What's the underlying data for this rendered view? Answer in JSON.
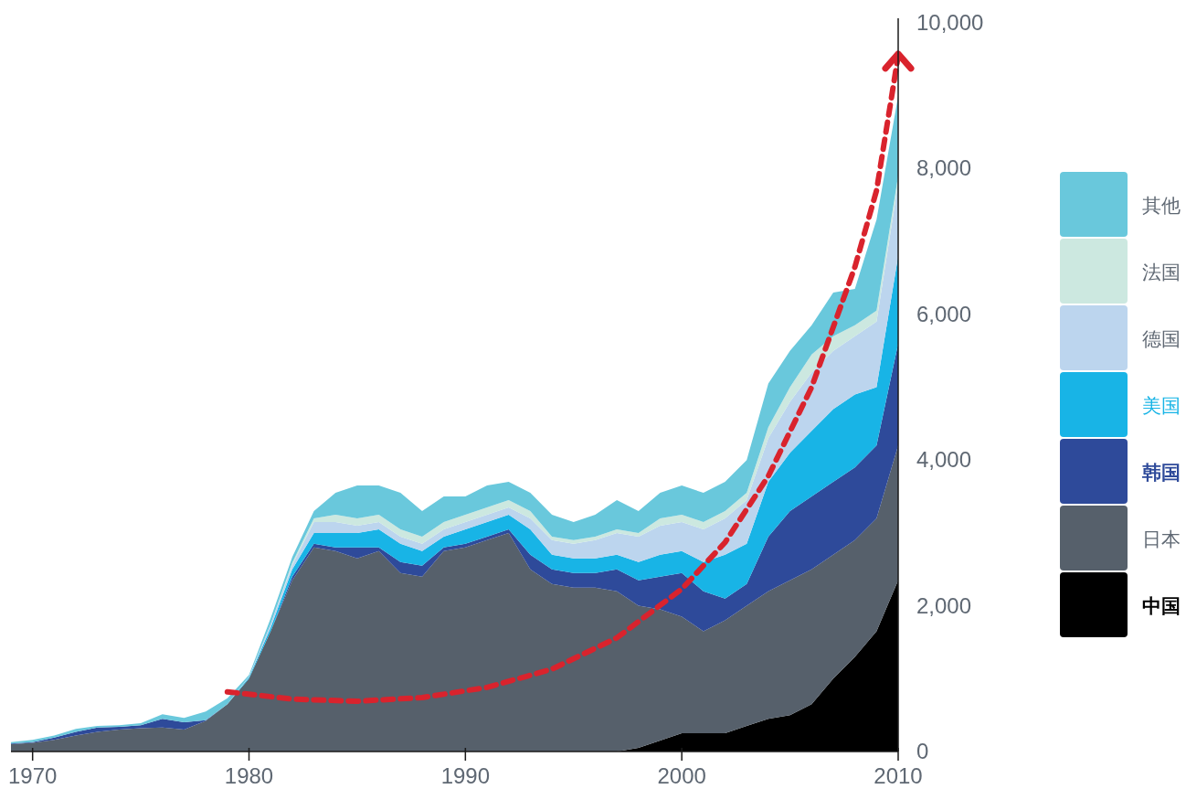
{
  "chart_data": {
    "type": "area",
    "stacked": true,
    "legend": "right",
    "grid": false,
    "x": [
      1969,
      1970,
      1971,
      1972,
      1973,
      1974,
      1975,
      1976,
      1977,
      1978,
      1979,
      1980,
      1981,
      1982,
      1983,
      1984,
      1985,
      1986,
      1987,
      1988,
      1989,
      1990,
      1991,
      1992,
      1993,
      1994,
      1995,
      1996,
      1997,
      1998,
      1999,
      2000,
      2001,
      2002,
      2003,
      2004,
      2005,
      2006,
      2007,
      2008,
      2009,
      2010
    ],
    "xlim": [
      1969,
      2010
    ],
    "xticks": [
      1970,
      1980,
      1990,
      2000,
      2010
    ],
    "ylim": [
      0,
      10000
    ],
    "yticks": [
      0,
      {
        "value": 2000,
        "label": "2,000"
      },
      {
        "value": 4000,
        "label": "4,000"
      },
      {
        "value": 6000,
        "label": "6,000"
      },
      {
        "value": 8000,
        "label": "8,000"
      },
      {
        "value": 10000,
        "label": "10,000"
      }
    ],
    "series": [
      {
        "name": "中国",
        "color": "#000000",
        "values": [
          0,
          0,
          0,
          0,
          0,
          0,
          0,
          0,
          0,
          0,
          0,
          0,
          0,
          0,
          0,
          0,
          0,
          0,
          0,
          0,
          0,
          0,
          0,
          0,
          0,
          0,
          0,
          0,
          0,
          50,
          150,
          250,
          250,
          250,
          350,
          450,
          500,
          650,
          1000,
          1300,
          1650,
          2350
        ]
      },
      {
        "name": "日本",
        "color": "#56606b",
        "values": [
          100,
          120,
          160,
          220,
          270,
          300,
          320,
          330,
          300,
          420,
          650,
          1000,
          1650,
          2350,
          2800,
          2750,
          2650,
          2750,
          2450,
          2400,
          2750,
          2800,
          2900,
          3000,
          2500,
          2300,
          2250,
          2250,
          2200,
          1950,
          1800,
          1600,
          1400,
          1550,
          1650,
          1750,
          1850,
          1850,
          1700,
          1600,
          1550,
          1850
        ]
      },
      {
        "name": "韩国",
        "color": "#2e4a9a",
        "values": [
          10,
          10,
          30,
          50,
          60,
          40,
          40,
          120,
          100,
          10,
          0,
          0,
          0,
          50,
          50,
          50,
          150,
          50,
          150,
          150,
          50,
          50,
          50,
          50,
          200,
          200,
          200,
          200,
          300,
          350,
          450,
          600,
          550,
          300,
          300,
          750,
          950,
          1000,
          1000,
          1000,
          1000,
          1400
        ]
      },
      {
        "name": "美国",
        "color": "#18b4e6",
        "values": [
          0,
          0,
          0,
          0,
          0,
          0,
          0,
          0,
          0,
          0,
          0,
          20,
          50,
          100,
          150,
          200,
          200,
          250,
          250,
          200,
          150,
          200,
          200,
          200,
          350,
          200,
          200,
          200,
          200,
          250,
          300,
          300,
          400,
          600,
          550,
          750,
          800,
          900,
          1000,
          1000,
          800,
          1200
        ]
      },
      {
        "name": "德国",
        "color": "#bcd5ee",
        "values": [
          0,
          0,
          0,
          0,
          0,
          0,
          0,
          0,
          0,
          0,
          0,
          10,
          50,
          60,
          150,
          150,
          100,
          100,
          100,
          100,
          100,
          100,
          100,
          100,
          150,
          200,
          200,
          250,
          300,
          350,
          400,
          400,
          450,
          500,
          600,
          600,
          700,
          800,
          800,
          800,
          900,
          1000
        ]
      },
      {
        "name": "法国",
        "color": "#cce8e0",
        "values": [
          0,
          0,
          0,
          0,
          0,
          0,
          0,
          0,
          0,
          0,
          0,
          0,
          0,
          30,
          50,
          100,
          100,
          100,
          100,
          100,
          100,
          100,
          100,
          100,
          100,
          50,
          50,
          50,
          50,
          50,
          100,
          100,
          100,
          100,
          100,
          150,
          200,
          250,
          200,
          150,
          150,
          100
        ]
      },
      {
        "name": "其他",
        "color": "#69c8dc",
        "values": [
          20,
          30,
          30,
          40,
          20,
          20,
          30,
          60,
          60,
          120,
          80,
          20,
          80,
          80,
          100,
          300,
          450,
          400,
          500,
          350,
          350,
          250,
          300,
          250,
          250,
          300,
          250,
          300,
          400,
          300,
          350,
          400,
          400,
          400,
          450,
          600,
          500,
          400,
          600,
          500,
          1250,
          1100
        ]
      },
      {
        "type": "line",
        "color": "#d9232d",
        "line_style": "dashed",
        "x": [
          1979,
          1982,
          1985,
          1988,
          1991,
          1994,
          1997,
          2000,
          2002,
          2004,
          2006,
          2008,
          2009,
          2010
        ],
        "values": [
          820,
          720,
          690,
          740,
          880,
          1130,
          1560,
          2230,
          2870,
          3780,
          5000,
          6650,
          7700,
          9550
        ]
      }
    ]
  }
}
